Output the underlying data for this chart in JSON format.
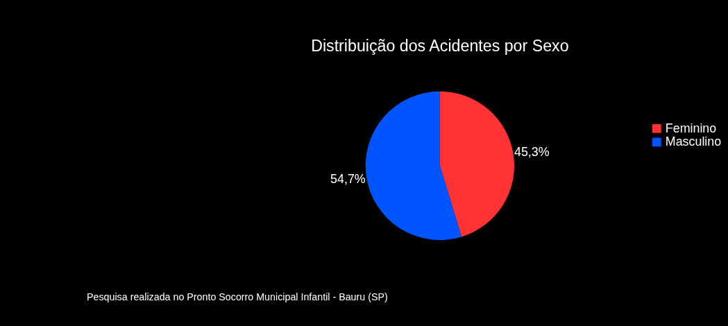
{
  "chart_data": {
    "type": "pie",
    "title": "Distribuição dos Acidentes por Sexo",
    "categories": [
      "Feminino",
      "Masculino"
    ],
    "values": [
      45.3,
      54.7
    ],
    "colors": [
      "#ff3333",
      "#0055ff"
    ],
    "value_labels": [
      "45,3%",
      "54,7%"
    ],
    "legend": "right",
    "annotations": [
      "Pesquisa realizada no Pronto Socorro Municipal Infantil - Bauru (SP)"
    ]
  }
}
